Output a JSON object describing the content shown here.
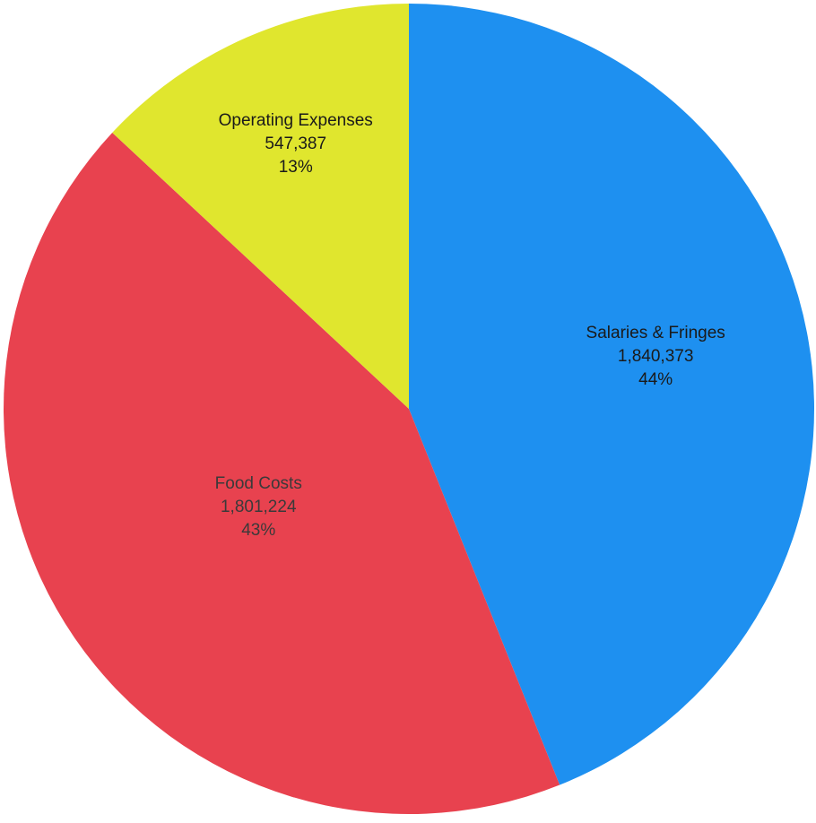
{
  "chart_data": {
    "type": "pie",
    "start_angle_deg": 0,
    "direction": "clockwise",
    "slices": [
      {
        "label": "Salaries & Fringes",
        "value": 1840373,
        "value_text": "1,840,373",
        "percent_text": "44%",
        "color": "#1e90f0"
      },
      {
        "label": "Food Costs",
        "value": 1801224,
        "value_text": "1,801,224",
        "percent_text": "43%",
        "color": "#e8424f"
      },
      {
        "label": "Operating Expenses",
        "value": 547387,
        "value_text": "547,387",
        "percent_text": "13%",
        "color": "#e0e62e"
      }
    ]
  }
}
